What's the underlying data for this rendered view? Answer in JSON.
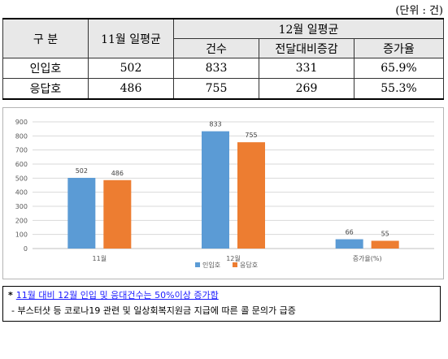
{
  "unit_label": "(단위 : 건)",
  "table": {
    "header_category": "구 분",
    "header_nov": "11월 일평균",
    "header_dec": "12월 일평균",
    "sub_count": "건수",
    "sub_diff": "전달대비증감",
    "sub_rate": "증가율",
    "rows": [
      {
        "label": "인입호",
        "nov": "502",
        "dec_count": "833",
        "dec_diff": "331",
        "dec_rate": "65.9%"
      },
      {
        "label": "응답호",
        "nov": "486",
        "dec_count": "755",
        "dec_diff": "269",
        "dec_rate": "55.3%"
      }
    ]
  },
  "chart_data": {
    "type": "bar",
    "categories": [
      "11월",
      "12월",
      "증가율(%)"
    ],
    "series": [
      {
        "name": "인입호",
        "values": [
          502,
          833,
          66
        ],
        "color": "#5b9bd5"
      },
      {
        "name": "응답호",
        "values": [
          486,
          755,
          55
        ],
        "color": "#ed7d31"
      }
    ],
    "yticks": [
      "0",
      "100",
      "200",
      "300",
      "400",
      "500",
      "600",
      "700",
      "800",
      "900"
    ],
    "ylim": [
      0,
      900
    ],
    "grid": true,
    "legend": "bottom"
  },
  "notes": {
    "line1_marker": "*",
    "line1": "11월 대비 12월 인입 및 응대건수는 50%이상 증가함",
    "line2": "- 부스터샷 등 코로나19 관련 및 일상회복지원금 지급에 따른 콜 문의가 급증"
  }
}
